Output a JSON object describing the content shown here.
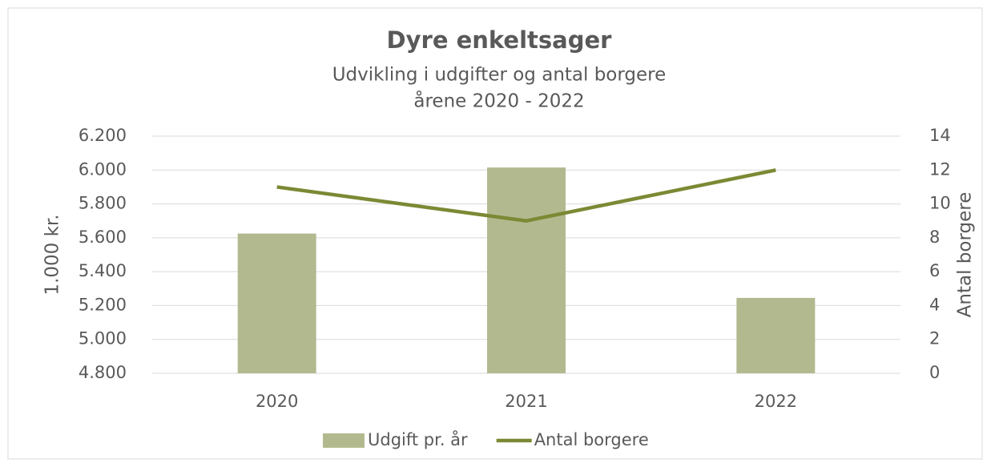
{
  "chart_data": {
    "type": "bar",
    "title": "Dyre enkeltsager",
    "subtitle": [
      "Udvikling i udgifter og antal borgere",
      "årene 2020 - 2022"
    ],
    "ylabel": "1.000 kr.",
    "y2label": "Antal borgere",
    "categories": [
      "2020",
      "2021",
      "2022"
    ],
    "series": [
      {
        "name": "Udgift pr. år",
        "type": "bar",
        "color": "#b3b98f",
        "values": [
          5625,
          6015,
          5245
        ]
      },
      {
        "name": "Antal borgere",
        "type": "line",
        "axis": "y2",
        "color": "#7a8a34",
        "values": [
          11,
          9,
          12
        ]
      }
    ],
    "ylim": [
      4800,
      6200
    ],
    "yticks": [
      {
        "value": 4800,
        "label": "4.800"
      },
      {
        "value": 5000,
        "label": "5.000"
      },
      {
        "value": 5200,
        "label": "5.200"
      },
      {
        "value": 5400,
        "label": "5.400"
      },
      {
        "value": 5600,
        "label": "5.600"
      },
      {
        "value": 5800,
        "label": "5.800"
      },
      {
        "value": 6000,
        "label": "6.000"
      },
      {
        "value": 6200,
        "label": "6.200"
      }
    ],
    "y2lim": [
      0,
      14
    ],
    "y2ticks": [
      0,
      2,
      4,
      6,
      8,
      10,
      12,
      14
    ],
    "grid": true,
    "legend": "bottom"
  }
}
